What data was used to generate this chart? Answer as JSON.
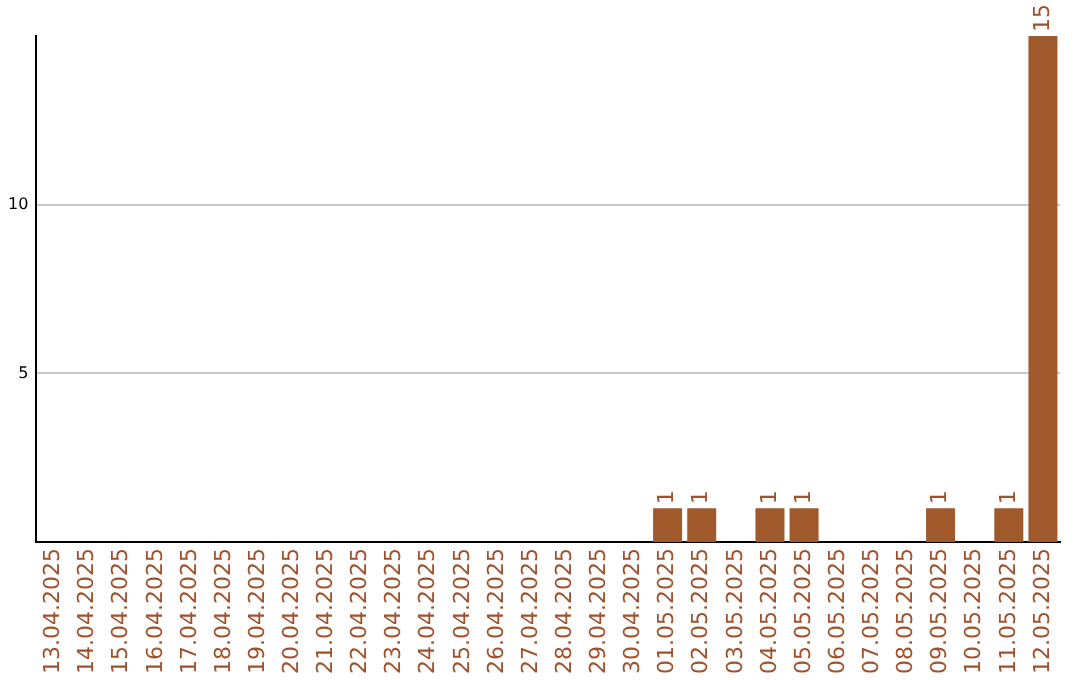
{
  "chart_data": {
    "type": "bar",
    "categories": [
      "13.04.2025",
      "14.04.2025",
      "15.04.2025",
      "16.04.2025",
      "17.04.2025",
      "18.04.2025",
      "19.04.2025",
      "20.04.2025",
      "21.04.2025",
      "22.04.2025",
      "23.04.2025",
      "24.04.2025",
      "25.04.2025",
      "26.04.2025",
      "27.04.2025",
      "28.04.2025",
      "29.04.2025",
      "30.04.2025",
      "01.05.2025",
      "02.05.2025",
      "03.05.2025",
      "04.05.2025",
      "05.05.2025",
      "06.05.2025",
      "07.05.2025",
      "08.05.2025",
      "09.05.2025",
      "10.05.2025",
      "11.05.2025",
      "12.05.2025"
    ],
    "values": [
      0,
      0,
      0,
      0,
      0,
      0,
      0,
      0,
      0,
      0,
      0,
      0,
      0,
      0,
      0,
      0,
      0,
      0,
      1,
      1,
      0,
      1,
      1,
      0,
      0,
      0,
      1,
      0,
      1,
      15
    ],
    "value_labels": [
      null,
      null,
      null,
      null,
      null,
      null,
      null,
      null,
      null,
      null,
      null,
      null,
      null,
      null,
      null,
      null,
      null,
      null,
      "1",
      "1",
      null,
      "1",
      "1",
      null,
      null,
      null,
      "1",
      null,
      "1",
      "15"
    ],
    "color": "#a0592b",
    "ylim": [
      0,
      15
    ],
    "yticks": [
      5,
      10
    ],
    "grid": "y",
    "legend": false
  }
}
